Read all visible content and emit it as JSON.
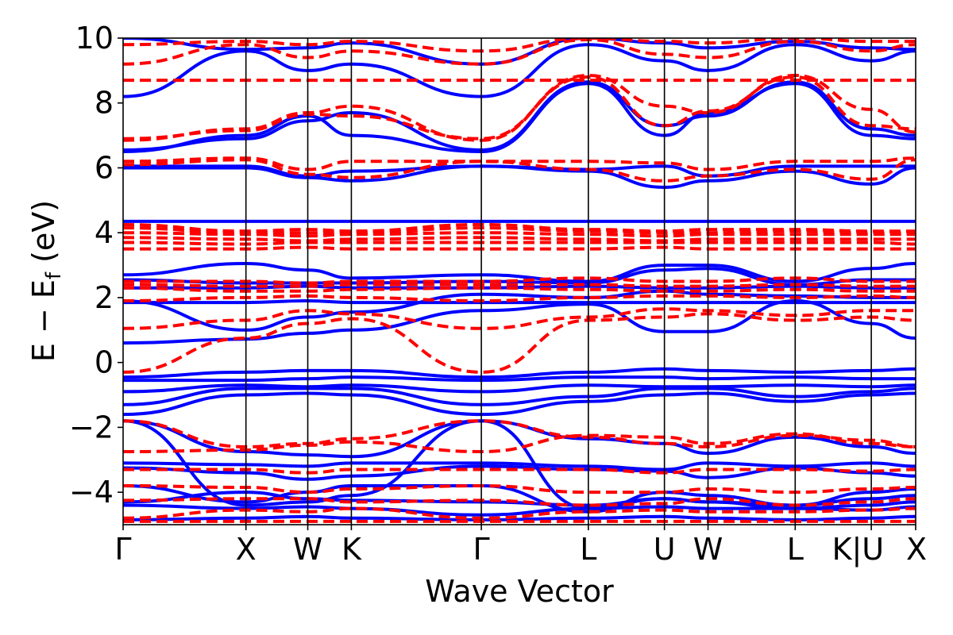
{
  "chart_data": {
    "type": "line",
    "title": "",
    "xlabel": "Wave Vector",
    "ylabel": {
      "main": "E − E",
      "sub": "f",
      "unit": " (eV)"
    },
    "ylim": [
      -5,
      10
    ],
    "yticks": [
      -4,
      -2,
      0,
      2,
      4,
      6,
      8,
      10
    ],
    "ytick_labels": [
      "−4",
      "−2",
      "0",
      "2",
      "4",
      "6",
      "8",
      "10"
    ],
    "x_range": [
      0,
      1
    ],
    "kpoints": [
      {
        "label": "Γ",
        "x": 0.0
      },
      {
        "label": "X",
        "x": 0.155
      },
      {
        "label": "W",
        "x": 0.233
      },
      {
        "label": "K",
        "x": 0.288
      },
      {
        "label": "Γ",
        "x": 0.452
      },
      {
        "label": "L",
        "x": 0.587
      },
      {
        "label": "U",
        "x": 0.683
      },
      {
        "label": "W",
        "x": 0.738
      },
      {
        "label": "L",
        "x": 0.848
      },
      {
        "label": "K|U",
        "x": 0.944
      },
      {
        "label": "X",
        "x": 1.0
      }
    ],
    "grid": false,
    "series": [
      {
        "style": "solid",
        "color": "#0000ff",
        "bands": [
          [
            -4.85,
            -4.8,
            -4.75,
            -4.8,
            -4.85,
            -4.8,
            -4.75,
            -4.8,
            -4.85,
            -4.8,
            -4.75
          ],
          [
            -4.4,
            -4.5,
            -4.45,
            -4.5,
            -4.7,
            -4.5,
            -4.45,
            -4.5,
            -4.5,
            -4.55,
            -4.45
          ],
          [
            -4.3,
            -4.0,
            -4.2,
            -4.25,
            -4.3,
            -4.4,
            -4.2,
            -4.3,
            -4.4,
            -4.2,
            -4.1
          ],
          [
            -3.8,
            -4.3,
            -4.0,
            -3.8,
            -3.8,
            -4.6,
            -4.0,
            -4.1,
            -4.4,
            -4.0,
            -3.9
          ],
          [
            -3.25,
            -3.4,
            -3.6,
            -3.5,
            -3.2,
            -3.3,
            -3.35,
            -3.55,
            -3.25,
            -3.4,
            -3.5
          ],
          [
            -3.1,
            -3.15,
            -3.2,
            -3.1,
            -3.1,
            -3.2,
            -3.3,
            -3.1,
            -3.2,
            -3.1,
            -3.2
          ],
          [
            -1.8,
            -2.75,
            -2.85,
            -2.9,
            -1.8,
            -2.35,
            -2.5,
            -2.8,
            -2.3,
            -2.6,
            -2.8
          ],
          [
            -1.8,
            -4.4,
            -4.3,
            -4.1,
            -1.8,
            -4.5,
            -4.2,
            -4.3,
            -4.5,
            -4.4,
            -4.3
          ],
          [
            -1.6,
            -1.0,
            -0.95,
            -1.0,
            -1.6,
            -1.2,
            -1.0,
            -0.95,
            -1.2,
            -1.0,
            -0.95
          ],
          [
            -1.3,
            -0.8,
            -0.8,
            -0.8,
            -1.3,
            -1.05,
            -0.8,
            -0.8,
            -1.05,
            -0.9,
            -0.8
          ],
          [
            -0.9,
            -0.7,
            -0.75,
            -0.7,
            -0.9,
            -0.7,
            -0.75,
            -0.75,
            -0.7,
            -0.75,
            -0.7
          ],
          [
            -0.55,
            -0.55,
            -0.5,
            -0.45,
            -0.55,
            -0.45,
            -0.45,
            -0.5,
            -0.45,
            -0.5,
            -0.5
          ],
          [
            -0.45,
            -0.3,
            -0.25,
            -0.25,
            -0.45,
            -0.3,
            -0.2,
            -0.25,
            -0.3,
            -0.25,
            -0.2
          ],
          [
            0.6,
            0.72,
            0.9,
            1.0,
            1.6,
            1.8,
            0.95,
            0.95,
            1.9,
            1.2,
            0.75
          ],
          [
            1.85,
            1.85,
            1.9,
            1.85,
            1.85,
            1.85,
            1.85,
            1.85,
            1.85,
            1.85,
            1.85
          ],
          [
            1.9,
            1.0,
            1.4,
            1.55,
            2.1,
            2.0,
            2.2,
            2.1,
            2.05,
            2.0,
            2.0
          ],
          [
            2.3,
            2.3,
            2.35,
            2.3,
            2.3,
            2.35,
            2.3,
            2.3,
            2.35,
            2.3,
            2.3
          ],
          [
            2.55,
            2.45,
            2.45,
            2.45,
            2.5,
            2.45,
            2.85,
            2.9,
            2.4,
            2.55,
            2.55
          ],
          [
            2.7,
            3.05,
            2.85,
            2.6,
            2.7,
            2.5,
            3.0,
            3.0,
            2.5,
            2.9,
            3.05
          ],
          [
            4.35,
            4.35,
            4.35,
            4.35,
            4.35,
            4.35,
            4.35,
            4.35,
            4.35,
            4.35,
            4.35
          ],
          [
            6.0,
            6.0,
            5.7,
            5.6,
            6.05,
            5.9,
            5.4,
            5.6,
            5.9,
            5.5,
            6.0
          ],
          [
            6.05,
            6.05,
            5.75,
            5.9,
            6.05,
            5.95,
            6.05,
            5.75,
            6.05,
            6.05,
            6.05
          ],
          [
            6.5,
            7.0,
            7.6,
            7.0,
            6.5,
            8.6,
            7.0,
            7.7,
            8.6,
            7.0,
            6.9
          ],
          [
            6.55,
            6.9,
            7.45,
            7.7,
            6.55,
            8.65,
            7.3,
            7.6,
            8.65,
            7.2,
            7.0
          ],
          [
            8.2,
            9.6,
            9.0,
            9.2,
            8.2,
            9.8,
            9.3,
            9.0,
            9.8,
            9.3,
            9.6
          ],
          [
            10.0,
            9.65,
            9.7,
            9.85,
            9.2,
            10.0,
            9.85,
            9.7,
            9.9,
            9.7,
            9.65
          ]
        ]
      },
      {
        "style": "dashed",
        "color": "#ff0000",
        "bands": [
          [
            -4.9,
            -4.9,
            -4.9,
            -4.9,
            -4.9,
            -4.9,
            -4.9,
            -4.9,
            -4.9,
            -4.9,
            -4.9
          ],
          [
            -4.8,
            -4.55,
            -4.6,
            -4.5,
            -4.8,
            -4.6,
            -4.55,
            -4.6,
            -4.6,
            -4.55,
            -4.5
          ],
          [
            -4.25,
            -4.2,
            -4.2,
            -4.3,
            -4.25,
            -4.4,
            -4.35,
            -4.2,
            -4.4,
            -4.3,
            -4.2
          ],
          [
            -3.8,
            -3.85,
            -4.0,
            -3.9,
            -3.8,
            -4.0,
            -4.0,
            -3.9,
            -4.0,
            -3.9,
            -3.85
          ],
          [
            -3.3,
            -3.3,
            -3.4,
            -3.3,
            -3.3,
            -3.3,
            -3.4,
            -3.3,
            -3.3,
            -3.35,
            -3.3
          ],
          [
            -2.75,
            -2.7,
            -2.55,
            -2.45,
            -2.75,
            -2.25,
            -2.3,
            -2.5,
            -2.2,
            -2.5,
            -2.6
          ],
          [
            -1.8,
            -2.6,
            -2.5,
            -2.35,
            -1.8,
            -2.3,
            -2.5,
            -2.6,
            -2.25,
            -2.4,
            -2.6
          ],
          [
            -0.3,
            0.75,
            1.2,
            1.35,
            -0.3,
            1.3,
            1.4,
            1.5,
            1.3,
            1.4,
            1.3
          ],
          [
            1.05,
            1.3,
            1.6,
            1.5,
            1.05,
            1.4,
            1.65,
            1.6,
            1.45,
            1.6,
            1.6
          ],
          [
            1.9,
            2.0,
            2.05,
            2.0,
            1.9,
            2.0,
            2.05,
            2.05,
            2.0,
            2.05,
            2.0
          ],
          [
            2.3,
            2.2,
            2.2,
            2.25,
            2.3,
            2.25,
            2.2,
            2.2,
            2.25,
            2.2,
            2.2
          ],
          [
            2.4,
            2.35,
            2.35,
            2.4,
            2.4,
            2.4,
            2.35,
            2.35,
            2.4,
            2.35,
            2.35
          ],
          [
            2.5,
            2.5,
            2.45,
            2.5,
            2.5,
            2.6,
            2.5,
            2.5,
            2.6,
            2.5,
            2.5
          ],
          [
            3.5,
            3.5,
            3.55,
            3.5,
            3.5,
            3.5,
            3.55,
            3.5,
            3.5,
            3.5,
            3.5
          ],
          [
            3.7,
            3.65,
            3.7,
            3.7,
            3.7,
            3.7,
            3.7,
            3.7,
            3.7,
            3.7,
            3.65
          ],
          [
            3.85,
            3.8,
            3.75,
            3.8,
            3.85,
            3.8,
            3.75,
            3.8,
            3.8,
            3.8,
            3.8
          ],
          [
            4.0,
            3.95,
            3.9,
            3.95,
            4.0,
            3.95,
            3.9,
            3.95,
            3.95,
            3.95,
            3.95
          ],
          [
            4.15,
            4.0,
            4.0,
            4.0,
            4.15,
            4.05,
            4.0,
            4.0,
            4.05,
            4.0,
            4.0
          ],
          [
            4.25,
            4.05,
            4.1,
            4.05,
            4.25,
            4.1,
            4.05,
            4.1,
            4.1,
            4.05,
            4.05
          ],
          [
            6.1,
            6.25,
            5.8,
            5.7,
            6.2,
            5.95,
            5.6,
            5.75,
            5.95,
            5.65,
            6.25
          ],
          [
            6.2,
            6.3,
            5.95,
            6.2,
            6.2,
            6.2,
            6.15,
            5.95,
            6.2,
            6.2,
            6.3
          ],
          [
            6.85,
            7.2,
            7.7,
            7.9,
            6.85,
            8.85,
            7.9,
            7.7,
            8.85,
            7.8,
            7.1
          ],
          [
            6.9,
            7.15,
            7.65,
            7.6,
            6.9,
            8.8,
            7.3,
            7.75,
            8.8,
            7.3,
            7.2
          ],
          [
            8.7,
            8.7,
            8.7,
            8.7,
            8.7,
            8.7,
            8.7,
            8.7,
            8.7,
            8.7,
            8.7
          ],
          [
            9.2,
            9.8,
            9.4,
            9.6,
            9.2,
            9.95,
            9.5,
            9.4,
            9.9,
            9.6,
            9.8
          ],
          [
            9.8,
            9.9,
            9.8,
            9.9,
            9.6,
            10.0,
            9.9,
            9.85,
            10.0,
            9.9,
            9.9
          ]
        ]
      }
    ]
  }
}
